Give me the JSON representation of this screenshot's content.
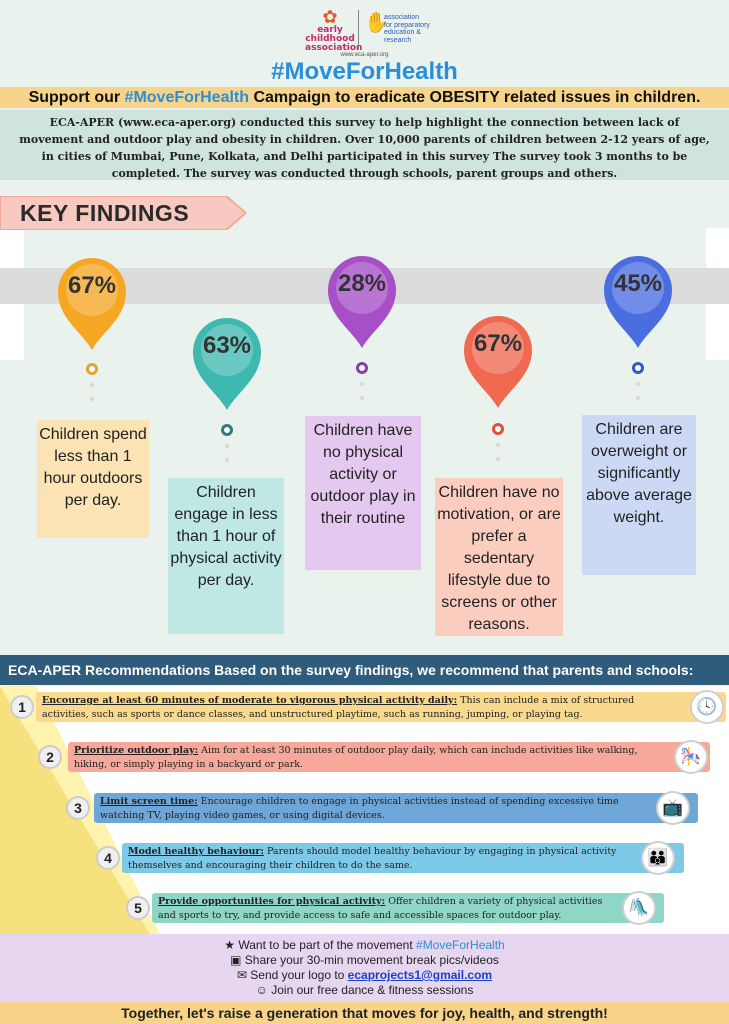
{
  "header": {
    "logo_eca_lines": [
      "early",
      "childhood",
      "association"
    ],
    "logo_aper_lines": [
      "association",
      "for preparatory",
      "education &",
      "research"
    ],
    "logo_url": "www.eca-aper.org",
    "hashtag_title": "#MoveForHealth"
  },
  "support": {
    "prefix": "Support our ",
    "hashtag": "#MoveForHealth",
    "suffix": " Campaign to eradicate OBESITY related issues in children."
  },
  "intro": "ECA-APER (www.eca-aper.org) conducted this survey to help highlight the connection between lack of movement and outdoor play and obesity in children. Over 10,000 parents of children between 2-12 years of age, in cities of Mumbai, Pune, Kolkata, and Delhi  participated in this survey  The survey took 3 months to be completed. The survey was conducted through schools, parent groups and others.",
  "key_findings_label": "KEY FINDINGS",
  "findings": [
    {
      "pct": "67%",
      "text": "Children spend less than 1 hour outdoors per day.",
      "pin_color": "#f5a623",
      "card_color": "#fbe3b4",
      "dot_color": "#e3a32c"
    },
    {
      "pct": "63%",
      "text": "Children engage in less than 1 hour of physical activity per day.",
      "pin_color": "#3fb9b0",
      "card_color": "#bfe8e4",
      "dot_color": "#2f7b80"
    },
    {
      "pct": "28%",
      "text": "Children have no physical activity or outdoor play in their routine",
      "pin_color": "#a64fc7",
      "card_color": "#e4c8ef",
      "dot_color": "#8a3fa6"
    },
    {
      "pct": "67%",
      "text": "Children have no motivation, or are prefer a sedentary lifestyle due to screens or other reasons.",
      "pin_color": "#f06a52",
      "card_color": "#fbcdbf",
      "dot_color": "#d9533a"
    },
    {
      "pct": "45%",
      "text": "Children are overweight or significantly above average weight.",
      "pin_color": "#4a6ee0",
      "card_color": "#cdd8f5",
      "dot_color": "#3358c4"
    }
  ],
  "recommendations": {
    "header": "ECA-APER Recommendations Based on the survey findings, we recommend that parents and schools:",
    "items": [
      {
        "num": "1",
        "title": "Encourage at least 60 minutes of moderate to vigorous physical activity daily:",
        "body": " This can include a mix of structured activities, such as sports or dance classes, and unstructured playtime, such as running, jumping, or playing tag.",
        "color": "#f8d98e",
        "icon": "clock-icon",
        "glyph": "🕓"
      },
      {
        "num": "2",
        "title": "Prioritize outdoor play:",
        "body": " Aim for at least 30 minutes of outdoor play daily, which can include activities like walking, hiking, or simply playing in a backyard or park.",
        "color": "#f6a99a",
        "icon": "playground-icon",
        "glyph": "🎠"
      },
      {
        "num": "3",
        "title": "Limit screen time:",
        "body": " Encourage children to engage in physical activities instead of spending excessive time watching TV, playing video games, or using digital devices.",
        "color": "#6fa6d8",
        "icon": "screen-icon",
        "glyph": "📺"
      },
      {
        "num": "4",
        "title": "Model healthy behaviour:",
        "body": " Parents should model healthy behaviour by engaging in physical activity themselves and encouraging their children to do the same.",
        "color": "#7fc9e8",
        "icon": "family-icon",
        "glyph": "👪"
      },
      {
        "num": "5",
        "title": "Provide opportunities for physical activity:",
        "body": " Offer children a variety of physical activities and sports to try, and provide access to safe and accessible spaces for outdoor play.",
        "color": "#8fd6c6",
        "icon": "swing-icon",
        "glyph": "🛝"
      }
    ]
  },
  "cta": {
    "line1_prefix": "Want to be part of the movement ",
    "line1_tag": "#MoveForHealth",
    "line2": "Share your 30-min movement break pics/videos",
    "line3_prefix": "Send your logo to ",
    "email": "ecaprojects1@gmail.com",
    "line4": "Join our free dance & fitness sessions"
  },
  "footer": "Together, let's raise a generation that moves for joy, health, and strength!",
  "colors": {
    "hashtag": "#2a8fd6",
    "band": "#f7d48a",
    "rec_header": "#2f5b7c",
    "cta_bg": "#e7d6ef"
  }
}
